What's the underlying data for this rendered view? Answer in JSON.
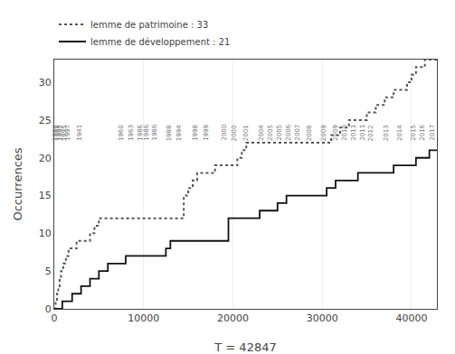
{
  "chart_data": {
    "type": "line",
    "xlabel": "T = 42847",
    "ylabel": "Occurrences",
    "xlim": [
      0,
      42847
    ],
    "ylim": [
      0,
      33
    ],
    "xticks": [
      0,
      10000,
      20000,
      30000,
      40000
    ],
    "yticks": [
      0,
      5,
      10,
      15,
      20,
      25,
      30
    ],
    "grid": "x",
    "legend": "upper left",
    "series": [
      {
        "name": "lemme de patrimoine : 33",
        "color": "#555555",
        "line_style": "dotted",
        "x": [
          0,
          150,
          300,
          450,
          600,
          750,
          1000,
          1300,
          1600,
          2200,
          2500,
          3500,
          4000,
          4500,
          5000,
          14000,
          14500,
          15000,
          15500,
          16000,
          17500,
          18000,
          19500,
          20500,
          21000,
          21500,
          25000,
          30500,
          31000,
          32000,
          33000,
          34000,
          35000,
          36000,
          37000,
          38000,
          39000,
          39500,
          40000,
          40500,
          41000,
          41500,
          42847
        ],
        "values": [
          0,
          1,
          2,
          3,
          4,
          5,
          6,
          7,
          8,
          8,
          9,
          9,
          10,
          11,
          12,
          12,
          15,
          16,
          17,
          18,
          18,
          19,
          19,
          20,
          21,
          22,
          22,
          22,
          23,
          24,
          25,
          25,
          26,
          27,
          28,
          29,
          29,
          30,
          31,
          32,
          32,
          33,
          33
        ]
      },
      {
        "name": "lemme de développement : 21",
        "color": "#111111",
        "line_style": "solid",
        "x": [
          0,
          800,
          900,
          2000,
          3000,
          4000,
          5000,
          6000,
          7500,
          8000,
          9500,
          12000,
          12500,
          13000,
          15500,
          19000,
          19500,
          21000,
          22500,
          23000,
          24500,
          25000,
          26000,
          29000,
          30500,
          31500,
          33500,
          34000,
          36000,
          37500,
          38000,
          39500,
          40500,
          42000,
          42847
        ],
        "values": [
          0,
          0,
          1,
          2,
          3,
          4,
          5,
          6,
          6,
          7,
          7,
          7,
          8,
          9,
          9,
          9,
          12,
          12,
          12,
          13,
          13,
          14,
          15,
          15,
          16,
          17,
          17,
          18,
          18,
          18,
          19,
          19,
          20,
          21,
          21
        ]
      }
    ],
    "annotations": [
      {
        "x": 120,
        "y": 22.0,
        "text": "1986"
      },
      {
        "x": 380,
        "y": 22.0,
        "text": "1988"
      },
      {
        "x": 700,
        "y": 22.0,
        "text": "1991"
      },
      {
        "x": 1150,
        "y": 22.0,
        "text": "1995"
      },
      {
        "x": 1500,
        "y": 22.0,
        "text": "1997"
      },
      {
        "x": 2800,
        "y": 22.0,
        "text": "1941"
      },
      {
        "x": 7500,
        "y": 22.0,
        "text": "1960"
      },
      {
        "x": 8600,
        "y": 22.0,
        "text": "1963"
      },
      {
        "x": 9600,
        "y": 22.0,
        "text": "1986"
      },
      {
        "x": 10300,
        "y": 22.0,
        "text": "1986"
      },
      {
        "x": 11200,
        "y": 22.0,
        "text": "1986"
      },
      {
        "x": 12900,
        "y": 22.0,
        "text": "1988"
      },
      {
        "x": 14000,
        "y": 22.0,
        "text": "1994"
      },
      {
        "x": 15800,
        "y": 22.0,
        "text": "1998"
      },
      {
        "x": 17000,
        "y": 22.0,
        "text": "1999"
      },
      {
        "x": 19000,
        "y": 22.0,
        "text": "2000"
      },
      {
        "x": 20200,
        "y": 22.0,
        "text": "2000"
      },
      {
        "x": 21500,
        "y": 22.0,
        "text": "2001"
      },
      {
        "x": 23200,
        "y": 22.0,
        "text": "2004"
      },
      {
        "x": 24200,
        "y": 22.0,
        "text": "2005"
      },
      {
        "x": 25200,
        "y": 22.0,
        "text": "2005"
      },
      {
        "x": 26200,
        "y": 22.0,
        "text": "2006"
      },
      {
        "x": 27200,
        "y": 22.0,
        "text": "2007"
      },
      {
        "x": 28600,
        "y": 22.0,
        "text": "2008"
      },
      {
        "x": 30200,
        "y": 22.0,
        "text": "2009"
      },
      {
        "x": 31500,
        "y": 22.0,
        "text": "2009"
      },
      {
        "x": 32500,
        "y": 22.0,
        "text": "2010"
      },
      {
        "x": 33500,
        "y": 22.0,
        "text": "2011"
      },
      {
        "x": 34500,
        "y": 22.0,
        "text": "2011"
      },
      {
        "x": 35500,
        "y": 22.0,
        "text": "2012"
      },
      {
        "x": 37200,
        "y": 22.0,
        "text": "2013"
      },
      {
        "x": 38700,
        "y": 22.0,
        "text": "2014"
      },
      {
        "x": 40200,
        "y": 22.0,
        "text": "2015"
      },
      {
        "x": 41200,
        "y": 22.0,
        "text": "2016"
      },
      {
        "x": 42300,
        "y": 22.0,
        "text": "2017"
      }
    ]
  }
}
